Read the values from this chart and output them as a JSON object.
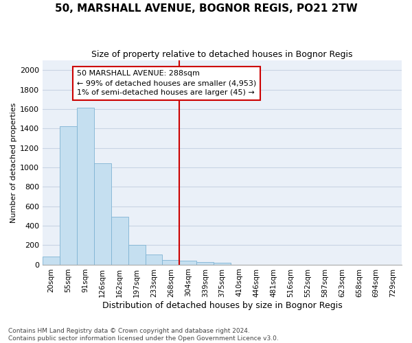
{
  "title": "50, MARSHALL AVENUE, BOGNOR REGIS, PO21 2TW",
  "subtitle": "Size of property relative to detached houses in Bognor Regis",
  "xlabel": "Distribution of detached houses by size in Bognor Regis",
  "ylabel": "Number of detached properties",
  "bin_labels": [
    "20sqm",
    "55sqm",
    "91sqm",
    "126sqm",
    "162sqm",
    "197sqm",
    "233sqm",
    "268sqm",
    "304sqm",
    "339sqm",
    "375sqm",
    "410sqm",
    "446sqm",
    "481sqm",
    "516sqm",
    "552sqm",
    "587sqm",
    "623sqm",
    "658sqm",
    "694sqm",
    "729sqm"
  ],
  "bar_heights": [
    80,
    1420,
    1610,
    1045,
    490,
    205,
    105,
    45,
    40,
    25,
    15,
    0,
    0,
    0,
    0,
    0,
    0,
    0,
    0,
    0,
    0
  ],
  "bar_color": "#c5dff0",
  "bar_edge_color": "#7fb3d3",
  "vline_x_bar": 8,
  "vline_color": "#cc0000",
  "annotation_line1": "50 MARSHALL AVENUE: 288sqm",
  "annotation_line2": "← 99% of detached houses are smaller (4,953)",
  "annotation_line3": "1% of semi-detached houses are larger (45) →",
  "annotation_box_edgecolor": "#cc0000",
  "ylim": [
    0,
    2100
  ],
  "yticks": [
    0,
    200,
    400,
    600,
    800,
    1000,
    1200,
    1400,
    1600,
    1800,
    2000
  ],
  "footnote_line1": "Contains HM Land Registry data © Crown copyright and database right 2024.",
  "footnote_line2": "Contains public sector information licensed under the Open Government Licence v3.0.",
  "bg_color": "#eaf0f8",
  "grid_color": "#c8d4e4",
  "title_fontsize": 11,
  "subtitle_fontsize": 9,
  "ylabel_fontsize": 8,
  "xlabel_fontsize": 9,
  "tick_fontsize": 7.5,
  "ytick_fontsize": 8,
  "footnote_fontsize": 6.5
}
